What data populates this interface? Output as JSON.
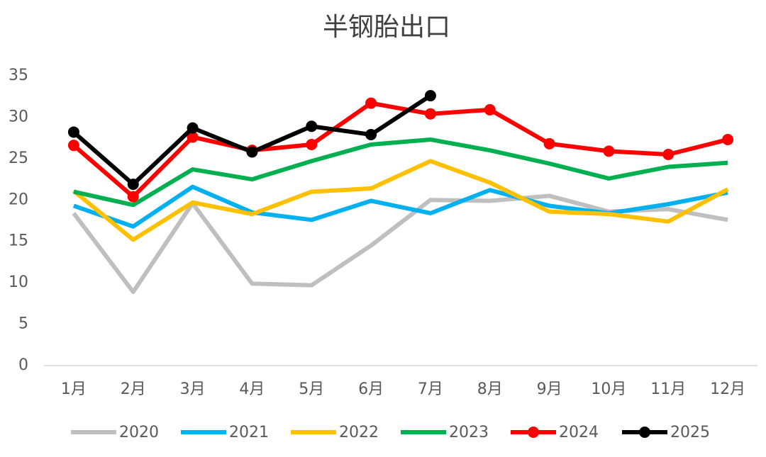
{
  "chart_data": {
    "type": "line",
    "title": "半钢胎出口",
    "categories": [
      "1月",
      "2月",
      "3月",
      "4月",
      "5月",
      "6月",
      "7月",
      "8月",
      "9月",
      "10月",
      "11月",
      "12月"
    ],
    "ylim": [
      0,
      35
    ],
    "yticks": [
      0,
      5,
      10,
      15,
      20,
      25,
      30,
      35
    ],
    "grid": false,
    "legend": "bottom",
    "series": [
      {
        "name": "2020",
        "color": "#bfbfbf",
        "marker": false,
        "values": [
          18.4,
          8.9,
          19.6,
          9.9,
          9.7,
          14.5,
          20.0,
          19.9,
          20.5,
          18.6,
          18.9,
          17.6
        ]
      },
      {
        "name": "2021",
        "color": "#00b0f0",
        "marker": false,
        "values": [
          19.3,
          16.8,
          21.6,
          18.5,
          17.6,
          19.9,
          18.4,
          21.2,
          19.3,
          18.4,
          19.5,
          20.9
        ]
      },
      {
        "name": "2022",
        "color": "#ffc000",
        "marker": false,
        "values": [
          21.1,
          15.2,
          19.7,
          18.3,
          21.0,
          21.4,
          24.7,
          22.1,
          18.6,
          18.3,
          17.4,
          21.3
        ]
      },
      {
        "name": "2023",
        "color": "#00b050",
        "marker": false,
        "values": [
          21.0,
          19.4,
          23.7,
          22.5,
          24.7,
          26.7,
          27.3,
          26.0,
          24.4,
          22.6,
          24.0,
          24.5
        ]
      },
      {
        "name": "2024",
        "color": "#ff0000",
        "marker": true,
        "values": [
          26.6,
          20.4,
          27.6,
          26.0,
          26.7,
          31.7,
          30.4,
          30.9,
          26.8,
          25.9,
          25.5,
          27.3
        ]
      },
      {
        "name": "2025",
        "color": "#000000",
        "marker": true,
        "values": [
          28.2,
          21.9,
          28.7,
          25.8,
          28.9,
          27.9,
          32.6,
          null,
          null,
          null,
          null,
          null
        ]
      }
    ]
  }
}
